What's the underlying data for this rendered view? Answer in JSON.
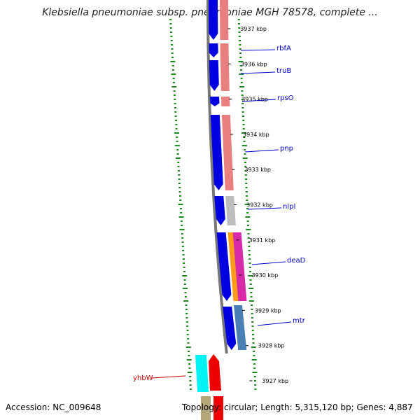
{
  "title": "Klebsiella pneumoniae subsp. pneumoniae MGH 78578, complete ...",
  "accession_text": "Accession: NC_009648",
  "summary_text": "Topology: circular; Length: 5,315,120 bp; Genes: 4,887",
  "colors": {
    "forward_cds": "#0000e0",
    "backbone": "#777777",
    "label_line_forward": "#0000cc",
    "label_line_reverse": "#cc0000",
    "gc_skew_dots": "#1a8a1a"
  },
  "ticks": [
    {
      "label": "3937 kbp",
      "kbp": 3937
    },
    {
      "label": "3936 kbp",
      "kbp": 3936
    },
    {
      "label": "3935 kbp",
      "kbp": 3935
    },
    {
      "label": "3934 kbp",
      "kbp": 3934
    },
    {
      "label": "3933 kbp",
      "kbp": 3933
    },
    {
      "label": "3932 kbp",
      "kbp": 3932
    },
    {
      "label": "3931 kbp",
      "kbp": 3931
    },
    {
      "label": "3930 kbp",
      "kbp": 3930
    },
    {
      "label": "3929 kbp",
      "kbp": 3929
    },
    {
      "label": "3928 kbp",
      "kbp": 3928
    },
    {
      "label": "3927 kbp",
      "kbp": 3927
    }
  ],
  "gene_labels": [
    {
      "name": "rbfA",
      "strand": "forward"
    },
    {
      "name": "truB",
      "strand": "forward"
    },
    {
      "name": "rpsO",
      "strand": "forward"
    },
    {
      "name": "pnp",
      "strand": "forward"
    },
    {
      "name": "nlpI",
      "strand": "forward"
    },
    {
      "name": "deaD",
      "strand": "forward"
    },
    {
      "name": "mtr",
      "strand": "forward"
    },
    {
      "name": "yhbW",
      "strand": "reverse"
    }
  ]
}
